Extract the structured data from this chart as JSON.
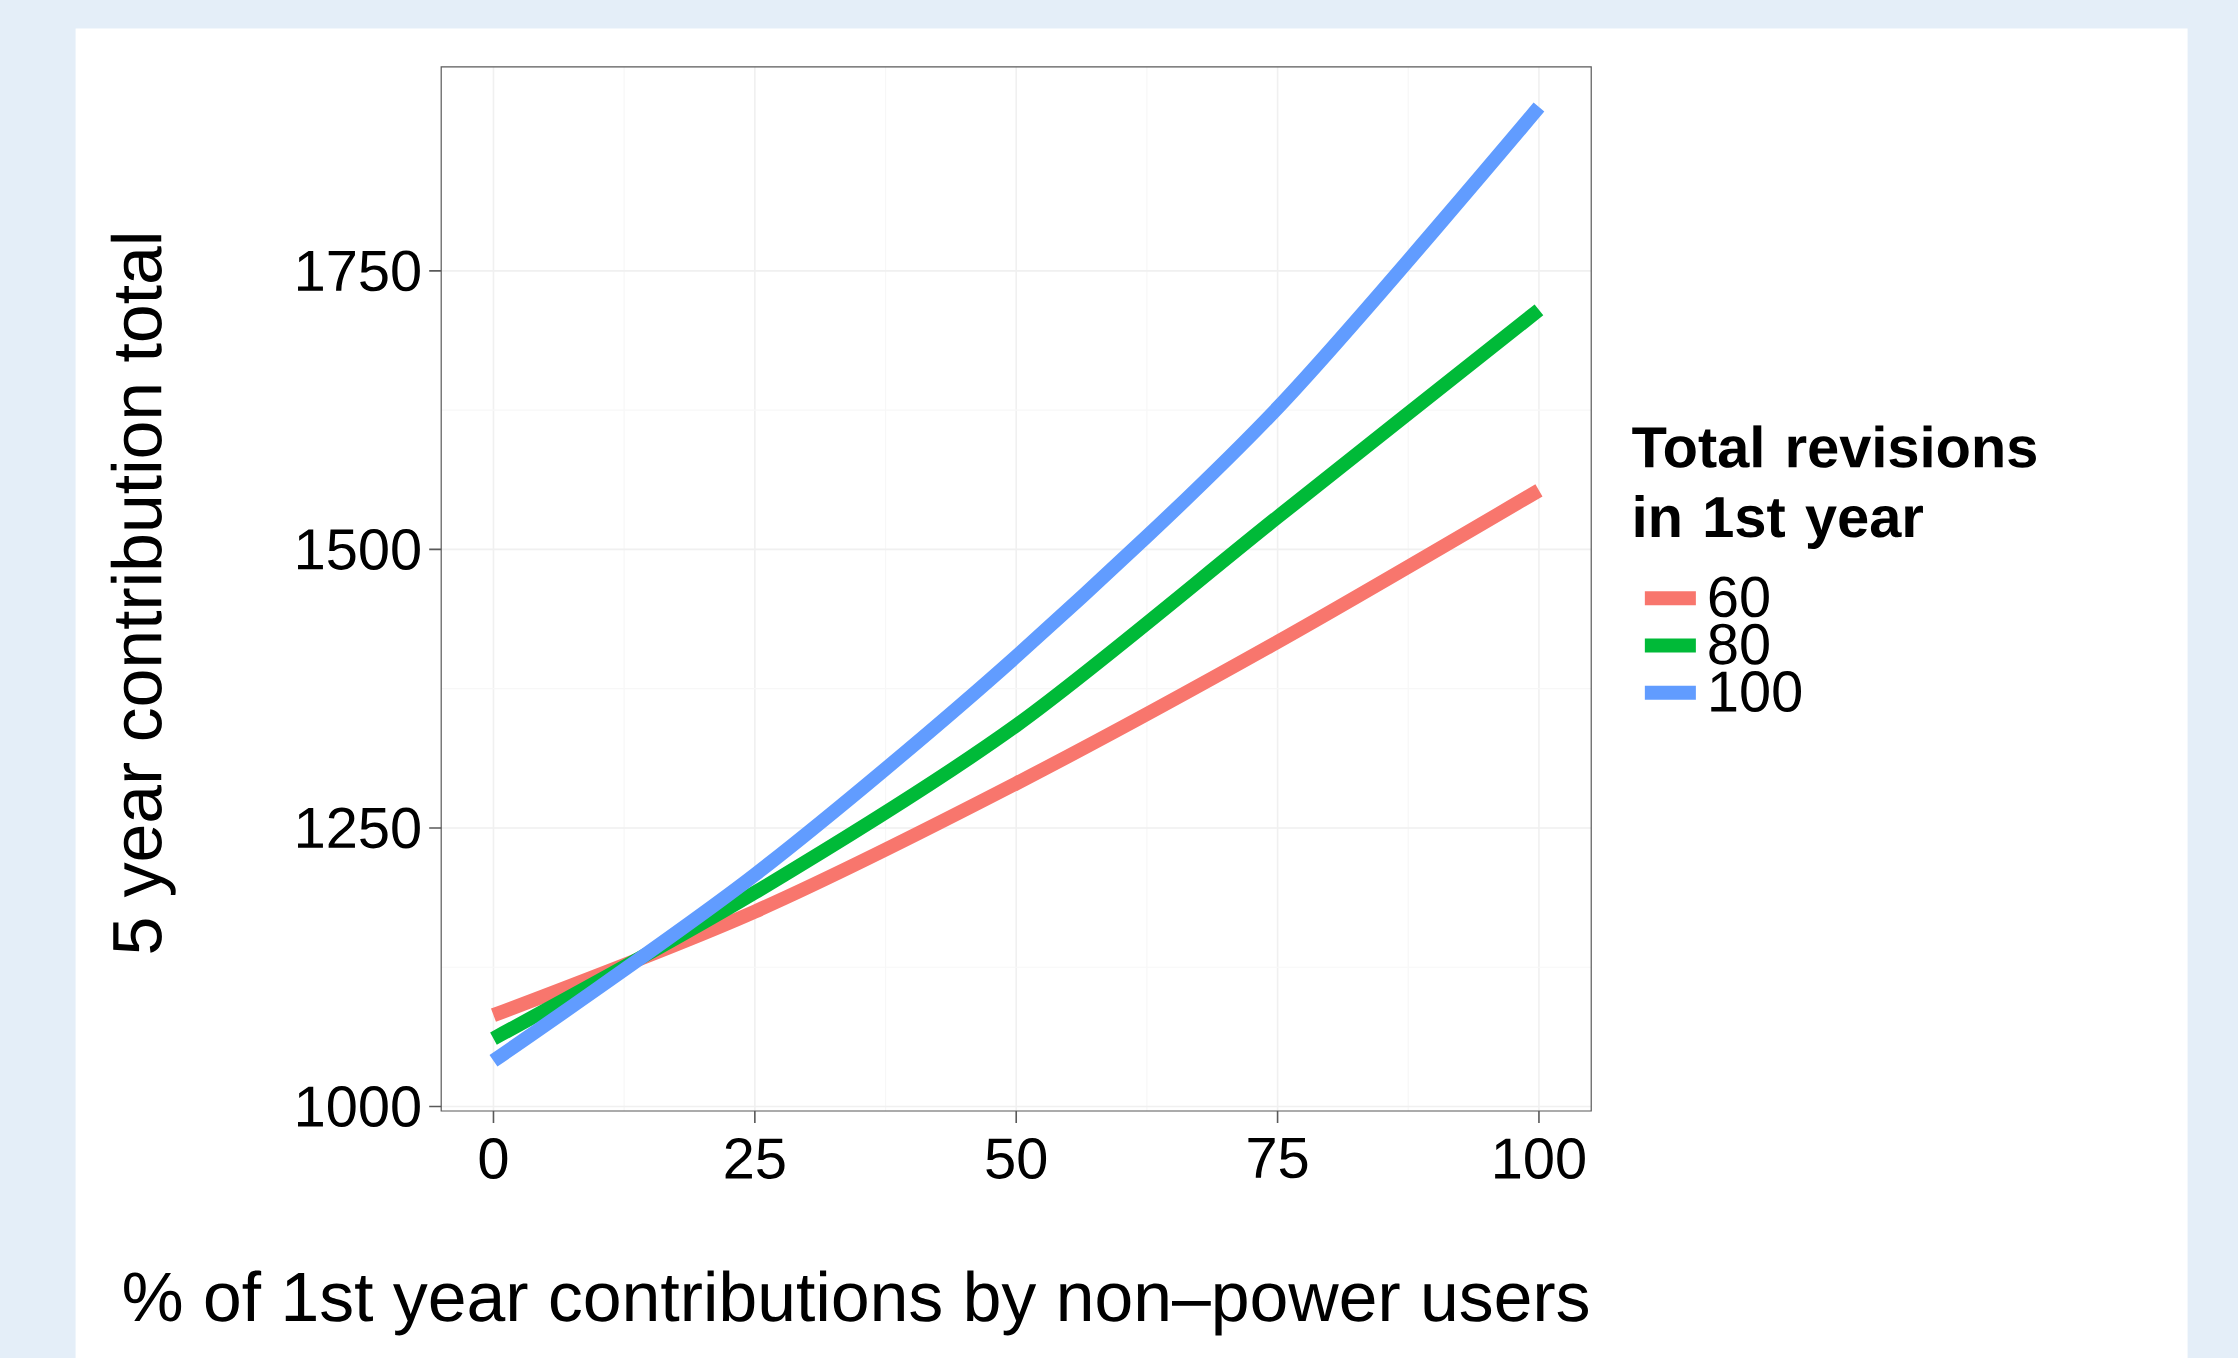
{
  "chart_data": {
    "type": "line",
    "xlabel": "% of 1st year contributions by non–power users",
    "ylabel": "5 year contribution total",
    "legend_title": "Total revisions in 1st year",
    "x": [
      0,
      25,
      50,
      75,
      100
    ],
    "series": [
      {
        "name": "60",
        "color": "#f8766d",
        "values": [
          1082,
          1175,
          1290,
          1417,
          1553
        ]
      },
      {
        "name": "80",
        "color": "#00ba38",
        "values": [
          1061,
          1192,
          1342,
          1529,
          1715
        ]
      },
      {
        "name": "100",
        "color": "#619cff",
        "values": [
          1041,
          1208,
          1404,
          1627,
          1897
        ]
      }
    ],
    "xlim": [
      -5,
      105
    ],
    "ylim": [
      996,
      1933
    ],
    "xticks": [
      0,
      25,
      50,
      75,
      100
    ],
    "yticks": [
      1000,
      1250,
      1500,
      1750
    ],
    "grid": true,
    "legend": "right",
    "line_style": "solid",
    "marker": "none"
  }
}
